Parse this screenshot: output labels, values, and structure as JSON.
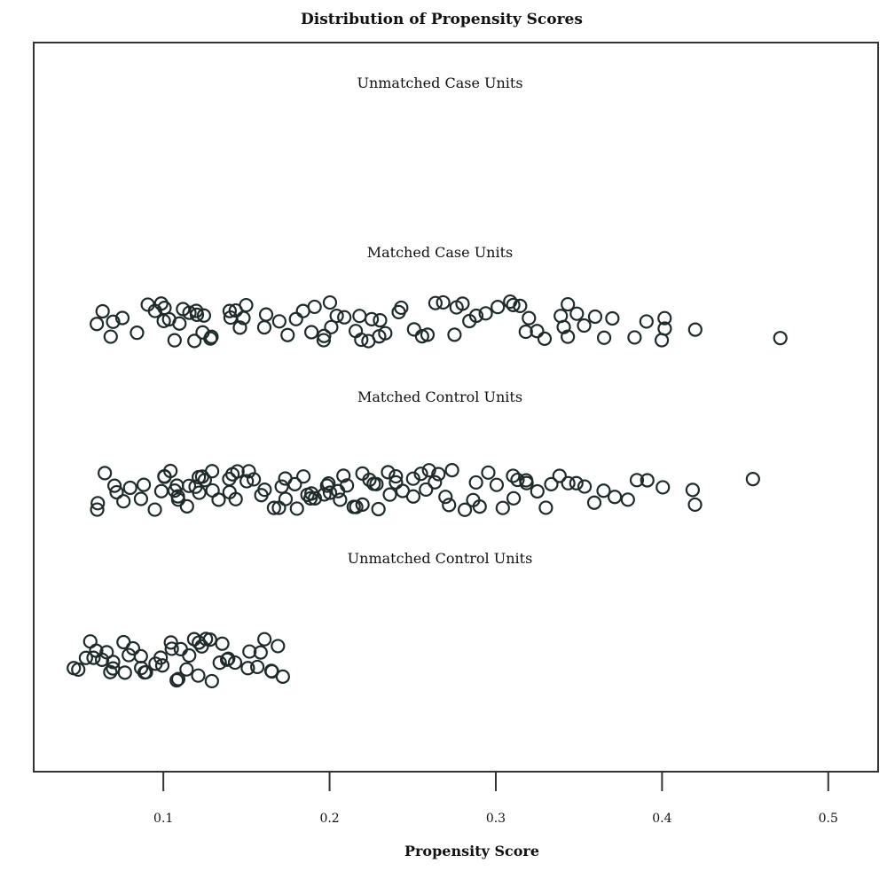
{
  "chart_data": {
    "type": "scatter",
    "title": "Distribution of Propensity Scores",
    "xlabel": "Propensity Score",
    "ylabel": "",
    "xlim": [
      0.022,
      0.53
    ],
    "x_ticks": [
      0.1,
      0.2,
      0.3,
      0.4,
      0.5
    ],
    "x_tick_labels": [
      "0.1",
      "0.2",
      "0.3",
      "0.4",
      "0.5"
    ],
    "grid": false,
    "jitter": true,
    "groups": [
      {
        "name": "Unmatched Case Units",
        "values": []
      },
      {
        "name": "Matched Case Units",
        "values": [
          0.06,
          0.065,
          0.07,
          0.07,
          0.075,
          0.085,
          0.09,
          0.095,
          0.1,
          0.1,
          0.1,
          0.105,
          0.105,
          0.11,
          0.11,
          0.115,
          0.12,
          0.12,
          0.12,
          0.125,
          0.125,
          0.13,
          0.13,
          0.14,
          0.14,
          0.145,
          0.145,
          0.15,
          0.15,
          0.16,
          0.16,
          0.17,
          0.175,
          0.18,
          0.185,
          0.19,
          0.19,
          0.195,
          0.195,
          0.2,
          0.2,
          0.205,
          0.21,
          0.215,
          0.22,
          0.22,
          0.225,
          0.225,
          0.23,
          0.23,
          0.235,
          0.24,
          0.245,
          0.25,
          0.255,
          0.26,
          0.265,
          0.27,
          0.275,
          0.275,
          0.28,
          0.285,
          0.29,
          0.295,
          0.3,
          0.31,
          0.31,
          0.315,
          0.32,
          0.32,
          0.325,
          0.33,
          0.34,
          0.34,
          0.345,
          0.345,
          0.35,
          0.355,
          0.36,
          0.365,
          0.37,
          0.385,
          0.39,
          0.4,
          0.4,
          0.4,
          0.42,
          0.47
        ]
      },
      {
        "name": "Matched Control Units",
        "values": [
          0.06,
          0.06,
          0.065,
          0.07,
          0.07,
          0.075,
          0.08,
          0.085,
          0.09,
          0.095,
          0.1,
          0.1,
          0.1,
          0.105,
          0.105,
          0.11,
          0.11,
          0.11,
          0.115,
          0.115,
          0.12,
          0.12,
          0.12,
          0.125,
          0.125,
          0.13,
          0.13,
          0.135,
          0.14,
          0.14,
          0.14,
          0.145,
          0.145,
          0.15,
          0.15,
          0.155,
          0.16,
          0.16,
          0.165,
          0.17,
          0.17,
          0.175,
          0.175,
          0.18,
          0.18,
          0.185,
          0.185,
          0.19,
          0.19,
          0.19,
          0.195,
          0.2,
          0.2,
          0.2,
          0.205,
          0.205,
          0.21,
          0.21,
          0.215,
          0.215,
          0.22,
          0.22,
          0.225,
          0.225,
          0.23,
          0.23,
          0.235,
          0.235,
          0.24,
          0.24,
          0.245,
          0.25,
          0.25,
          0.255,
          0.26,
          0.26,
          0.265,
          0.265,
          0.27,
          0.27,
          0.275,
          0.28,
          0.285,
          0.29,
          0.29,
          0.295,
          0.3,
          0.305,
          0.31,
          0.31,
          0.315,
          0.32,
          0.32,
          0.325,
          0.33,
          0.335,
          0.34,
          0.345,
          0.35,
          0.355,
          0.36,
          0.365,
          0.37,
          0.38,
          0.385,
          0.39,
          0.4,
          0.42,
          0.42,
          0.455
        ]
      },
      {
        "name": "Unmatched Control Units",
        "values": [
          0.045,
          0.05,
          0.055,
          0.055,
          0.06,
          0.06,
          0.065,
          0.065,
          0.07,
          0.07,
          0.07,
          0.075,
          0.075,
          0.08,
          0.08,
          0.085,
          0.085,
          0.09,
          0.09,
          0.095,
          0.1,
          0.1,
          0.105,
          0.105,
          0.11,
          0.11,
          0.11,
          0.115,
          0.115,
          0.12,
          0.12,
          0.12,
          0.125,
          0.125,
          0.13,
          0.13,
          0.135,
          0.135,
          0.14,
          0.14,
          0.145,
          0.15,
          0.15,
          0.155,
          0.16,
          0.16,
          0.165,
          0.165,
          0.17,
          0.17
        ]
      }
    ]
  },
  "colors": {
    "marker_stroke": "#1f2a2a",
    "frame": "#333333",
    "background": "#ffffff"
  }
}
